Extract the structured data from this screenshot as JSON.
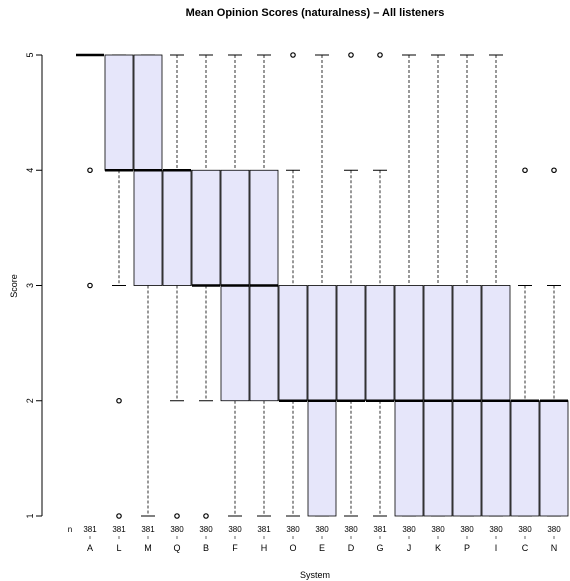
{
  "chart_data": {
    "type": "boxplot",
    "title": "Mean Opinion Scores (naturalness) – All listeners",
    "xlabel": "System",
    "ylabel": "Score",
    "ylim": [
      1,
      5
    ],
    "yticks": [
      "1",
      "2",
      "3",
      "4",
      "5"
    ],
    "n_label": "n",
    "box_fill": "#e6e6fa",
    "systems": [
      {
        "name": "A",
        "n": "381",
        "min": 5,
        "q1": 5,
        "median": 5,
        "q3": 5,
        "max": 5,
        "outliers": [
          4,
          3
        ]
      },
      {
        "name": "L",
        "n": "381",
        "min": 3,
        "q1": 4,
        "median": 4,
        "q3": 5,
        "max": 5,
        "outliers": [
          2,
          1
        ]
      },
      {
        "name": "M",
        "n": "381",
        "min": 1,
        "q1": 3,
        "median": 4,
        "q3": 5,
        "max": 5,
        "outliers": []
      },
      {
        "name": "Q",
        "n": "380",
        "min": 2,
        "q1": 3,
        "median": 4,
        "q3": 4,
        "max": 5,
        "outliers": [
          1
        ]
      },
      {
        "name": "B",
        "n": "380",
        "min": 2,
        "q1": 3,
        "median": 3,
        "q3": 4,
        "max": 5,
        "outliers": [
          1
        ]
      },
      {
        "name": "F",
        "n": "380",
        "min": 1,
        "q1": 2,
        "median": 3,
        "q3": 4,
        "max": 5,
        "outliers": []
      },
      {
        "name": "H",
        "n": "381",
        "min": 1,
        "q1": 2,
        "median": 3,
        "q3": 4,
        "max": 5,
        "outliers": []
      },
      {
        "name": "O",
        "n": "380",
        "min": 1,
        "q1": 2,
        "median": 2,
        "q3": 3,
        "max": 4,
        "outliers": [
          5
        ]
      },
      {
        "name": "E",
        "n": "380",
        "min": 1,
        "q1": 1,
        "median": 2,
        "q3": 3,
        "max": 5,
        "outliers": []
      },
      {
        "name": "D",
        "n": "380",
        "min": 1,
        "q1": 2,
        "median": 2,
        "q3": 3,
        "max": 4,
        "outliers": [
          5
        ]
      },
      {
        "name": "G",
        "n": "381",
        "min": 1,
        "q1": 2,
        "median": 2,
        "q3": 3,
        "max": 4,
        "outliers": [
          5
        ]
      },
      {
        "name": "J",
        "n": "380",
        "min": 1,
        "q1": 1,
        "median": 2,
        "q3": 3,
        "max": 5,
        "outliers": []
      },
      {
        "name": "K",
        "n": "380",
        "min": 1,
        "q1": 1,
        "median": 2,
        "q3": 3,
        "max": 5,
        "outliers": []
      },
      {
        "name": "P",
        "n": "380",
        "min": 1,
        "q1": 1,
        "median": 2,
        "q3": 3,
        "max": 5,
        "outliers": []
      },
      {
        "name": "I",
        "n": "380",
        "min": 1,
        "q1": 1,
        "median": 2,
        "q3": 3,
        "max": 5,
        "outliers": []
      },
      {
        "name": "C",
        "n": "380",
        "min": 1,
        "q1": 1,
        "median": 2,
        "q3": 2,
        "max": 3,
        "outliers": [
          4
        ]
      },
      {
        "name": "N",
        "n": "380",
        "min": 1,
        "q1": 1,
        "median": 2,
        "q3": 2,
        "max": 3,
        "outliers": [
          4
        ]
      }
    ]
  }
}
